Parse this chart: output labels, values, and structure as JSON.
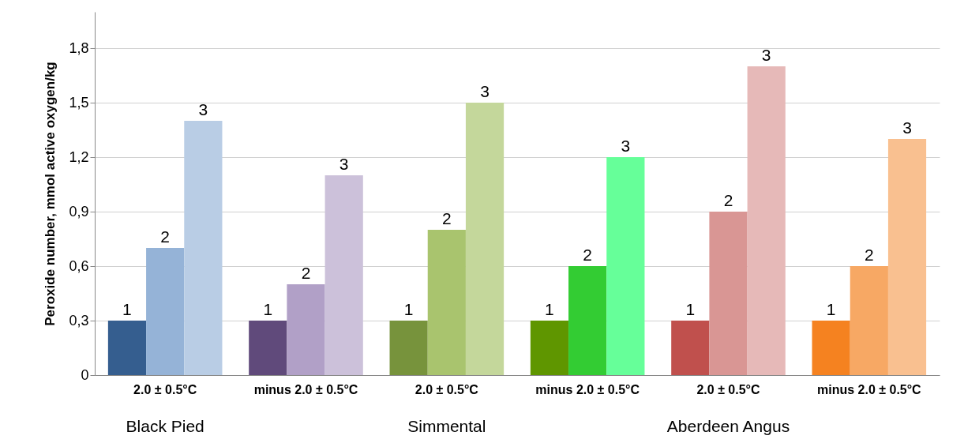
{
  "chart_data": {
    "type": "bar",
    "ylabel": "Peroxide number, mmol active oxygen/kg",
    "categories": [
      "2.0 ± 0.5°C",
      "minus 2.0 ± 0.5°C",
      "2.0 ± 0.5°C",
      "minus 2.0 ± 0.5°C",
      "2.0 ± 0.5°C",
      "minus 2.0 ± 0.5°C"
    ],
    "series": [
      {
        "name": "1",
        "colors": [
          "#355e8f",
          "#604a7b",
          "#77933c",
          "#5f9600",
          "#c0504d",
          "#f58220"
        ],
        "values": [
          0.3,
          0.3,
          0.3,
          0.3,
          0.3,
          0.3
        ]
      },
      {
        "name": "2",
        "colors": [
          "#95b3d7",
          "#b1a0c7",
          "#a9c46e",
          "#33cc33",
          "#d99694",
          "#f7a864"
        ],
        "values": [
          0.7,
          0.5,
          0.8,
          0.6,
          0.9,
          0.6
        ]
      },
      {
        "name": "3",
        "colors": [
          "#b9cde5",
          "#ccc1da",
          "#c4d79b",
          "#66ff99",
          "#e6b9b8",
          "#f9c090"
        ],
        "values": [
          1.4,
          1.1,
          1.5,
          1.2,
          1.7,
          1.3
        ]
      }
    ],
    "ylim": [
      0,
      2.0
    ],
    "yticks": [
      0,
      {
        "value": 0.3,
        "label": "0,3"
      },
      {
        "value": 0.6,
        "label": "0,6"
      },
      {
        "value": 0.9,
        "label": "0,9"
      },
      {
        "value": 1.2,
        "label": "1,2"
      },
      {
        "value": 1.5,
        "label": "1,5"
      },
      {
        "value": 1.8,
        "label": "1,8"
      }
    ],
    "grid": "y",
    "annotations": [
      "Black Pied",
      "Simmental",
      "Aberdeen Angus"
    ]
  }
}
